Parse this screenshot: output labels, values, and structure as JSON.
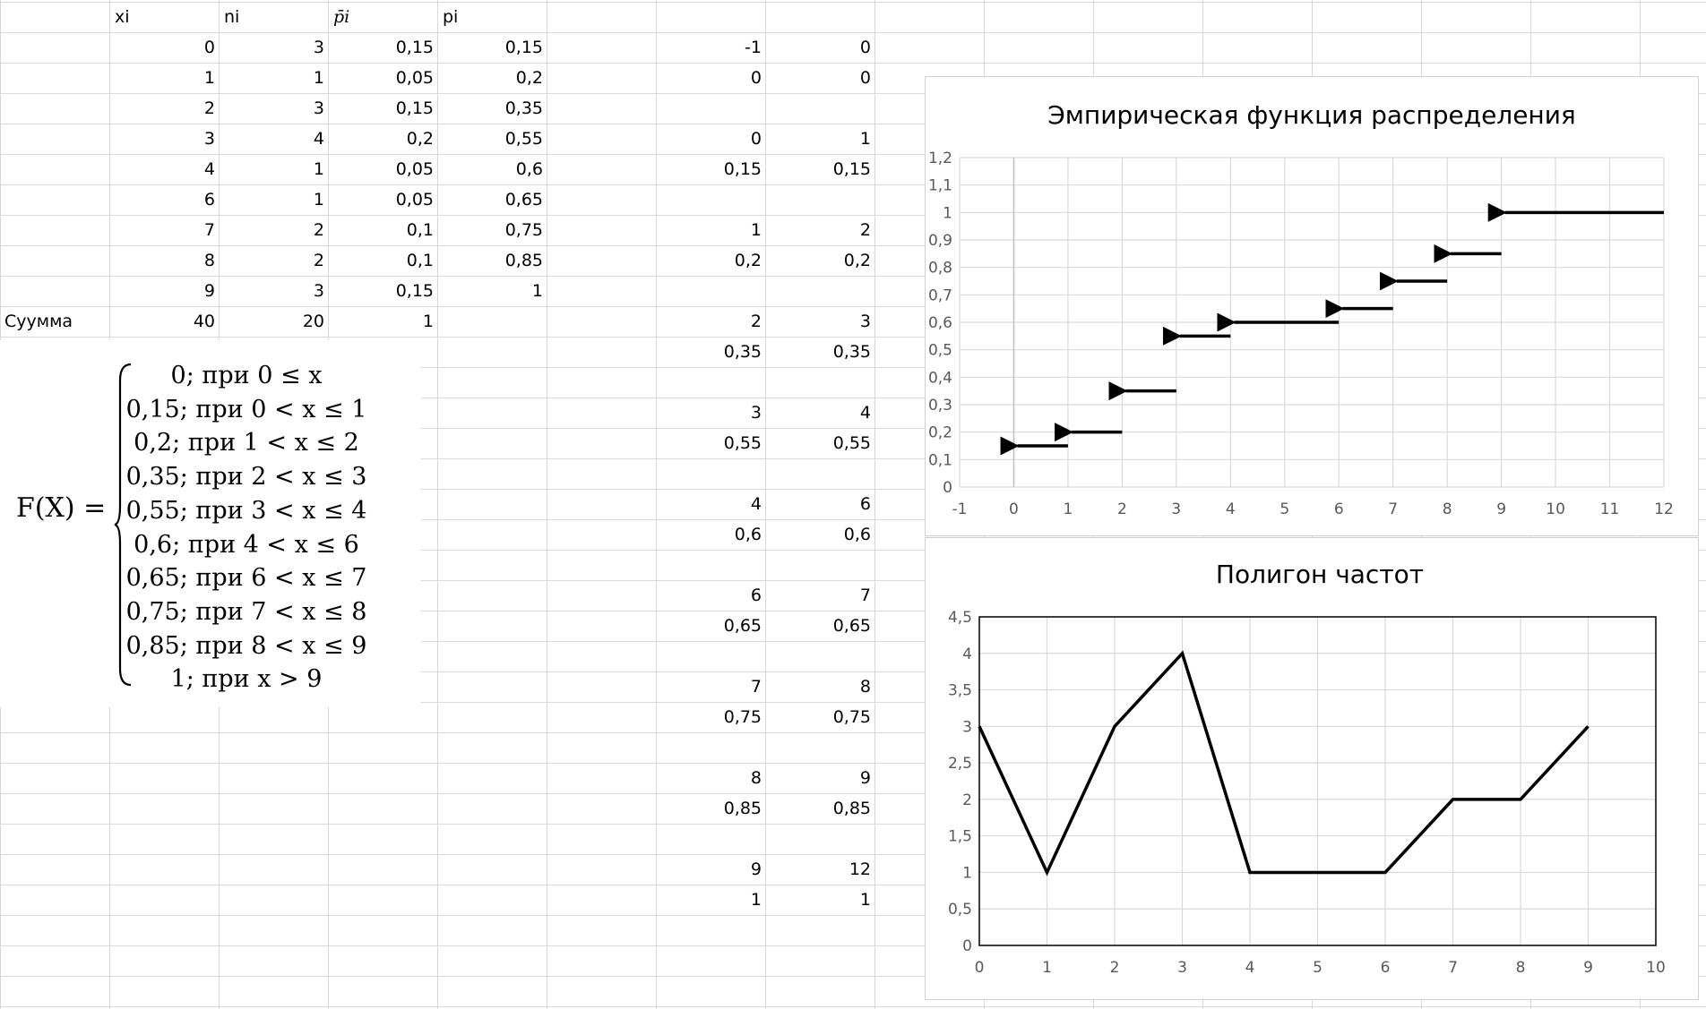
{
  "table": {
    "headers": [
      "xi",
      "ni",
      "p̄i",
      "pi"
    ],
    "rows": [
      [
        "0",
        "3",
        "0,15",
        "0,15"
      ],
      [
        "1",
        "1",
        "0,05",
        "0,2"
      ],
      [
        "2",
        "3",
        "0,15",
        "0,35"
      ],
      [
        "3",
        "4",
        "0,2",
        "0,55"
      ],
      [
        "4",
        "1",
        "0,05",
        "0,6"
      ],
      [
        "6",
        "1",
        "0,05",
        "0,65"
      ],
      [
        "7",
        "2",
        "0,1",
        "0,75"
      ],
      [
        "8",
        "2",
        "0,1",
        "0,85"
      ],
      [
        "9",
        "3",
        "0,15",
        "1"
      ]
    ],
    "sum_label": "Суумма",
    "sum_values": [
      "40",
      "20",
      "1"
    ]
  },
  "helper_cols": [
    [
      "-1",
      "0"
    ],
    [
      "0",
      "0"
    ],
    [
      "",
      ""
    ],
    [
      "0",
      "1"
    ],
    [
      "0,15",
      "0,15"
    ],
    [
      "",
      ""
    ],
    [
      "1",
      "2"
    ],
    [
      "0,2",
      "0,2"
    ],
    [
      "",
      ""
    ],
    [
      "2",
      "3"
    ],
    [
      "0,35",
      "0,35"
    ],
    [
      "",
      ""
    ],
    [
      "3",
      "4"
    ],
    [
      "0,55",
      "0,55"
    ],
    [
      "",
      ""
    ],
    [
      "4",
      "6"
    ],
    [
      "0,6",
      "0,6"
    ],
    [
      "",
      ""
    ],
    [
      "6",
      "7"
    ],
    [
      "0,65",
      "0,65"
    ],
    [
      "",
      ""
    ],
    [
      "7",
      "8"
    ],
    [
      "0,75",
      "0,75"
    ],
    [
      "",
      ""
    ],
    [
      "8",
      "9"
    ],
    [
      "0,85",
      "0,85"
    ],
    [
      "",
      ""
    ],
    [
      "9",
      "12"
    ],
    [
      "1",
      "1"
    ]
  ],
  "formula": {
    "lhs": "F(X) =",
    "cases": [
      "0;  при 0 ≤ x",
      "0,15; при 0 < x ≤ 1",
      "0,2; при 1 < x ≤ 2",
      "0,35; при 2 < x ≤ 3",
      "0,55; при 3 < x ≤ 4",
      "0,6; при 4 < x ≤ 6",
      "0,65; при 6 < x ≤ 7",
      "0,75; при 7 < x ≤ 8",
      "0,85; при 8 < x ≤ 9",
      "1; при x > 9"
    ]
  },
  "chart_data": [
    {
      "type": "line",
      "title": "Эмпирическая функция распределения",
      "xlim": [
        -1,
        12
      ],
      "ylim": [
        0,
        1.2
      ],
      "x_ticks": [
        "-1",
        "0",
        "1",
        "2",
        "3",
        "4",
        "5",
        "6",
        "7",
        "8",
        "9",
        "10",
        "11",
        "12"
      ],
      "y_ticks": [
        "0",
        "0,1",
        "0,2",
        "0,3",
        "0,4",
        "0,5",
        "0,6",
        "0,7",
        "0,8",
        "0,9",
        "1",
        "1,1",
        "1,2"
      ],
      "grid": true,
      "segments": [
        {
          "x": [
            0,
            1
          ],
          "y": 0.15
        },
        {
          "x": [
            1,
            2
          ],
          "y": 0.2
        },
        {
          "x": [
            2,
            3
          ],
          "y": 0.35
        },
        {
          "x": [
            3,
            4
          ],
          "y": 0.55
        },
        {
          "x": [
            4,
            6
          ],
          "y": 0.6
        },
        {
          "x": [
            6,
            7
          ],
          "y": 0.65
        },
        {
          "x": [
            7,
            8
          ],
          "y": 0.75
        },
        {
          "x": [
            8,
            9
          ],
          "y": 0.85
        },
        {
          "x": [
            9,
            12
          ],
          "y": 1
        }
      ],
      "arrow_direction": "left"
    },
    {
      "type": "line",
      "title": "Полигон частот",
      "xlim": [
        0,
        10
      ],
      "ylim": [
        0,
        4.5
      ],
      "x_ticks": [
        "0",
        "1",
        "2",
        "3",
        "4",
        "5",
        "6",
        "7",
        "8",
        "9",
        "10"
      ],
      "y_ticks": [
        "0",
        "0,5",
        "1",
        "1,5",
        "2",
        "2,5",
        "3",
        "3,5",
        "4",
        "4,5"
      ],
      "grid": true,
      "x": [
        0,
        1,
        2,
        3,
        4,
        5,
        6,
        7,
        8,
        9
      ],
      "values": [
        3,
        1,
        3,
        4,
        1,
        1,
        1,
        2,
        2,
        3
      ]
    }
  ]
}
